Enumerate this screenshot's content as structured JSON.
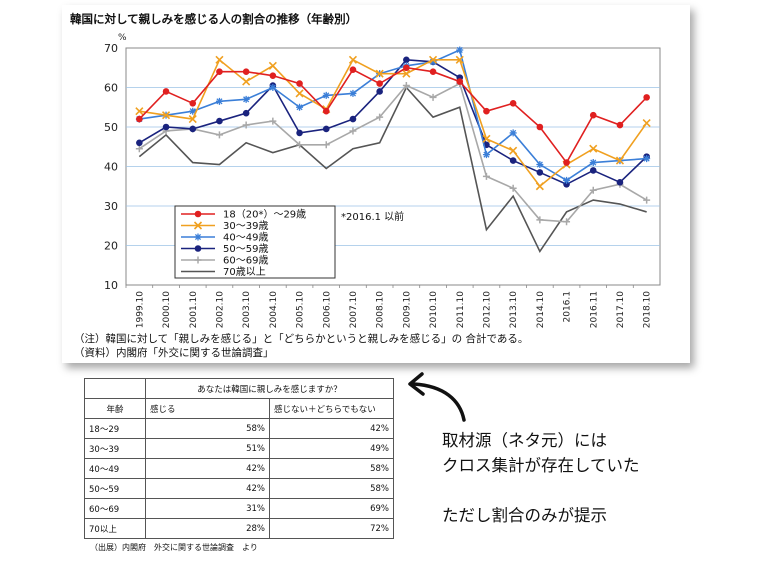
{
  "chart_data": {
    "type": "line",
    "title": "韓国に対して親しみを感じる人の割合の推移（年齢別）",
    "y_unit": "%",
    "ylim": [
      10,
      70
    ],
    "yticks": [
      10,
      20,
      30,
      40,
      50,
      60,
      70
    ],
    "grid": true,
    "legend_position": "bottom-left",
    "legend_note": "*2016.1 以前",
    "x_tick_labels": [
      "1999.10",
      "2000.10",
      "2001.10",
      "2002.10",
      "2003.10",
      "2004.10",
      "2005.10",
      "2006.10",
      "2007.10",
      "2008.10",
      "2009.10",
      "2010.10",
      "2011.10",
      "2012.10",
      "2013.10",
      "2014.10",
      "2016.1",
      "2016.11",
      "2017.10",
      "2018.10"
    ],
    "series": [
      {
        "name": "18（20*）～29歳",
        "color": "#e02020",
        "marker": "circle",
        "values": [
          52,
          59,
          56,
          64,
          64,
          63,
          61,
          54,
          64.5,
          61,
          65,
          64,
          61.5,
          54,
          56,
          50,
          41,
          53,
          50.5,
          57.5
        ]
      },
      {
        "name": "30～39歳",
        "color": "#f0a020",
        "marker": "x",
        "values": [
          54,
          53,
          52,
          67,
          61.5,
          65.5,
          58.5,
          54.5,
          67,
          63.5,
          63.5,
          67,
          67,
          47,
          44,
          35,
          40.5,
          44.5,
          41.5,
          51
        ]
      },
      {
        "name": "40～49歳",
        "color": "#3b7fd8",
        "marker": "star",
        "values": [
          52,
          53,
          54,
          56.5,
          57,
          60,
          55,
          58,
          58.5,
          63.5,
          65.5,
          66.5,
          69.5,
          43,
          48.5,
          40.5,
          36.5,
          41,
          41.5,
          42
        ]
      },
      {
        "name": "50～59歳",
        "color": "#1a237e",
        "marker": "dot",
        "values": [
          46,
          50,
          49.5,
          51.5,
          53.5,
          60.5,
          48.5,
          49.5,
          52,
          59,
          67,
          66.5,
          62.5,
          45.5,
          41.5,
          38.5,
          35.5,
          39,
          36,
          42.5
        ]
      },
      {
        "name": "60～69歳",
        "color": "#a8a8a8",
        "marker": "plus",
        "values": [
          44.5,
          49,
          49.5,
          48,
          50.5,
          51.5,
          45.5,
          45.5,
          49,
          52.5,
          60.5,
          57.5,
          61,
          37.5,
          34.5,
          26.5,
          26,
          34,
          35.5,
          31.5
        ]
      },
      {
        "name": "70歳以上",
        "color": "#555555",
        "marker": "none",
        "values": [
          42.5,
          48,
          41,
          40.5,
          46,
          43.5,
          45.5,
          39.5,
          44.5,
          46,
          60,
          52.5,
          55,
          24,
          32.5,
          18.5,
          28.5,
          31.5,
          30.5,
          28.5
        ]
      }
    ]
  },
  "notes": {
    "note1": "（注）韓国に対して「親しみを感じる」と「どちらかというと親しみを感じる」の 合計である。",
    "note2": "（資料）内閣府「外交に関する世論調査」"
  },
  "table": {
    "question": "あなたは韓国に親しみを感じますか？",
    "col_age": "年齢",
    "col_feel": "感じる",
    "col_notfeel": "感じない＋どちらでもない",
    "rows": [
      {
        "age": "18～29",
        "feel": "58%",
        "notfeel": "42%"
      },
      {
        "age": "30～39",
        "feel": "51%",
        "notfeel": "49%"
      },
      {
        "age": "40～49",
        "feel": "42%",
        "notfeel": "58%"
      },
      {
        "age": "50～59",
        "feel": "42%",
        "notfeel": "58%"
      },
      {
        "age": "60～69",
        "feel": "31%",
        "notfeel": "69%"
      },
      {
        "age": "70以上",
        "feel": "28%",
        "notfeel": "72%"
      }
    ]
  },
  "source_note": "（出展）内閣府　外交に関する世論調査　より",
  "callout": {
    "line1": "取材源（ネタ元）には",
    "line2": "クロス集計が存在していた",
    "line3": "ただし割合のみが提示"
  }
}
